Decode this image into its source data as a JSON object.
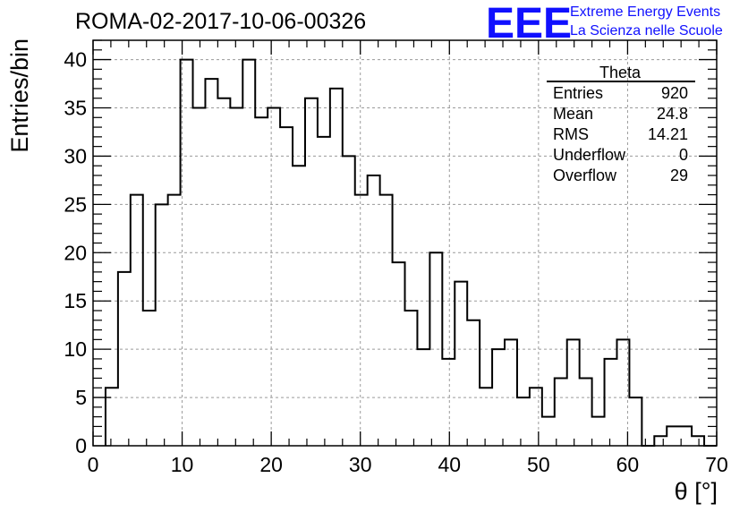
{
  "chart_data": {
    "type": "bar",
    "title": "ROMA-02-2017-10-06-00326",
    "xlabel": "θ [°]",
    "ylabel": "Entries/bin",
    "xlim": [
      0,
      70
    ],
    "ylim": [
      0,
      42
    ],
    "bin_width": 1.4,
    "bins_start": 1.4,
    "values": [
      6,
      18,
      26,
      14,
      25,
      26,
      40,
      35,
      38,
      36,
      35,
      40,
      34,
      35,
      33,
      29,
      36,
      32,
      37,
      30,
      26,
      28,
      26,
      19,
      14,
      10,
      20,
      9,
      17,
      13,
      6,
      10,
      11,
      5,
      6,
      3,
      7,
      11,
      7,
      3,
      9,
      11,
      5,
      0,
      1,
      2,
      2,
      1,
      0
    ],
    "x_ticks": [
      0,
      10,
      20,
      30,
      40,
      50,
      60,
      70
    ],
    "y_ticks": [
      0,
      5,
      10,
      15,
      20,
      25,
      30,
      35,
      40
    ],
    "grid": true,
    "stats": {
      "name": "Theta",
      "rows": [
        {
          "label": "Entries",
          "value": "920"
        },
        {
          "label": "Mean",
          "value": "24.8"
        },
        {
          "label": "RMS",
          "value": "14.21"
        },
        {
          "label": "Underflow",
          "value": "0"
        },
        {
          "label": "Overflow",
          "value": "29"
        }
      ]
    }
  },
  "logo": {
    "mark": "EEE",
    "line1": "Extreme Energy Events",
    "line2": "La Scienza nelle Scuole",
    "color": "#1010ff"
  }
}
